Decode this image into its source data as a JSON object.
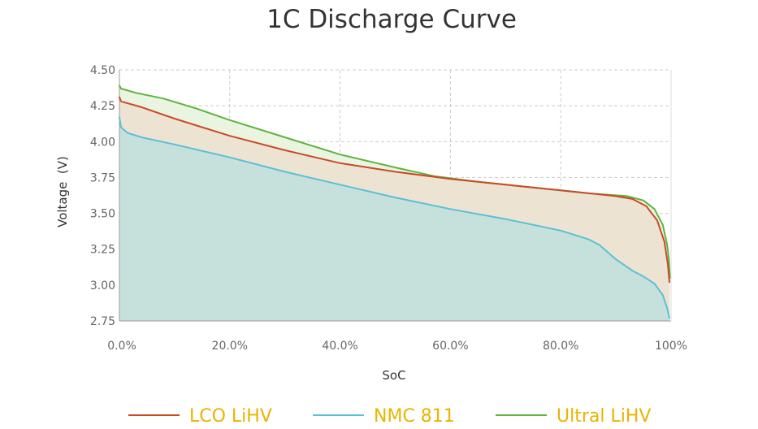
{
  "chart_data": {
    "type": "area",
    "title": "1C Discharge Curve",
    "xlabel": "SoC",
    "ylabel": "Voltage  (V)",
    "xlim": [
      0,
      100
    ],
    "ylim": [
      2.75,
      4.5
    ],
    "x_ticks": [
      "0.0%",
      "20.0%",
      "40.0%",
      "60.0%",
      "80.0%",
      "100%"
    ],
    "y_ticks": [
      "4.50",
      "4.25",
      "4.00",
      "3.75",
      "3.50",
      "3.25",
      "3.00",
      "2.75"
    ],
    "grid": true,
    "legend_position": "bottom",
    "legend_text_color": "#e9b400",
    "series": [
      {
        "name": "Ultral LiHV",
        "color": "#5fb340",
        "fill": "#eaf5e1",
        "points": [
          [
            0,
            4.39
          ],
          [
            0.3,
            4.37
          ],
          [
            3,
            4.34
          ],
          [
            8,
            4.3
          ],
          [
            14,
            4.23
          ],
          [
            20,
            4.15
          ],
          [
            30,
            4.03
          ],
          [
            40,
            3.91
          ],
          [
            50,
            3.82
          ],
          [
            57,
            3.76
          ],
          [
            65,
            3.72
          ],
          [
            75,
            3.68
          ],
          [
            85,
            3.64
          ],
          [
            92,
            3.62
          ],
          [
            95,
            3.59
          ],
          [
            97,
            3.53
          ],
          [
            98.5,
            3.42
          ],
          [
            99.3,
            3.28
          ],
          [
            99.6,
            3.18
          ],
          [
            99.8,
            3.05
          ]
        ]
      },
      {
        "name": "LCO LiHV",
        "color": "#c94a27",
        "fill": "#ede3d2",
        "points": [
          [
            0,
            4.31
          ],
          [
            0.3,
            4.28
          ],
          [
            4,
            4.24
          ],
          [
            10,
            4.16
          ],
          [
            20,
            4.04
          ],
          [
            30,
            3.94
          ],
          [
            40,
            3.85
          ],
          [
            50,
            3.79
          ],
          [
            60,
            3.74
          ],
          [
            70,
            3.7
          ],
          [
            80,
            3.66
          ],
          [
            90,
            3.62
          ],
          [
            93,
            3.6
          ],
          [
            95.5,
            3.55
          ],
          [
            97.5,
            3.45
          ],
          [
            98.8,
            3.3
          ],
          [
            99.4,
            3.15
          ],
          [
            99.7,
            3.02
          ]
        ]
      },
      {
        "name": "NMC 811",
        "color": "#5bc0d6",
        "fill": "#c6e1dc",
        "points": [
          [
            0,
            4.17
          ],
          [
            0.3,
            4.1
          ],
          [
            1.5,
            4.06
          ],
          [
            4,
            4.03
          ],
          [
            10,
            3.98
          ],
          [
            20,
            3.89
          ],
          [
            30,
            3.79
          ],
          [
            40,
            3.7
          ],
          [
            50,
            3.61
          ],
          [
            60,
            3.53
          ],
          [
            70,
            3.46
          ],
          [
            80,
            3.38
          ],
          [
            85,
            3.32
          ],
          [
            87,
            3.28
          ],
          [
            90,
            3.18
          ],
          [
            93,
            3.1
          ],
          [
            95,
            3.06
          ],
          [
            97,
            3.01
          ],
          [
            98.5,
            2.93
          ],
          [
            99.3,
            2.84
          ],
          [
            99.7,
            2.77
          ]
        ]
      }
    ]
  }
}
